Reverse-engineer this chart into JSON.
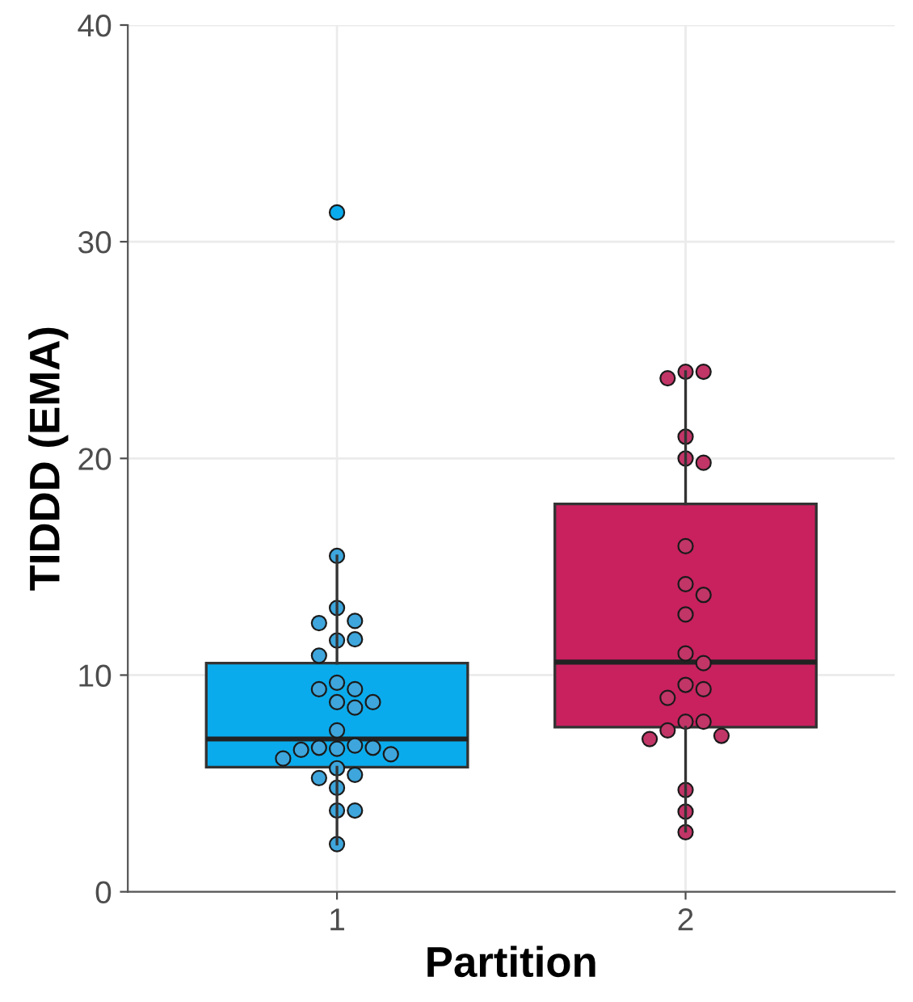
{
  "chart_data": {
    "type": "box",
    "xlabel": "Partition",
    "ylabel": "TIDDD (EMA)",
    "categories": [
      "1",
      "2"
    ],
    "ylim": [
      0,
      40
    ],
    "yticks": [
      0,
      10,
      20,
      30,
      40
    ],
    "grid": true,
    "series": [
      {
        "type": "box",
        "colors": [
          "#0aabec",
          "#c8215e"
        ],
        "boxes": [
          {
            "low": 2.2,
            "q1": 5.75,
            "median": 7.05,
            "q3": 10.55,
            "high": 15.5,
            "outliers": [
              31.35
            ]
          },
          {
            "low": 2.8,
            "q1": 7.6,
            "median": 10.6,
            "q3": 17.9,
            "high": 24.0
          }
        ]
      },
      {
        "type": "scatter",
        "color": "#3ea6dc",
        "marker": "circle",
        "x": [
          "1",
          "1",
          "1",
          "1",
          "1",
          "1",
          "1",
          "1",
          "1",
          "1",
          "1",
          "1",
          "1",
          "1",
          "1",
          "1",
          "1",
          "1",
          "1",
          "1",
          "1",
          "1",
          "1",
          "1",
          "1",
          "1",
          "1",
          "1"
        ],
        "values": [
          15.5,
          13.1,
          12.5,
          12.4,
          11.6,
          11.65,
          10.9,
          9.65,
          9.35,
          9.35,
          8.75,
          8.75,
          8.5,
          7.45,
          6.75,
          6.65,
          6.6,
          6.65,
          6.55,
          6.35,
          6.15,
          5.7,
          5.4,
          5.25,
          4.8,
          3.75,
          3.75,
          2.2
        ]
      },
      {
        "type": "scatter",
        "color": "#c13567",
        "marker": "circle",
        "x": [
          "2",
          "2",
          "2",
          "2",
          "2",
          "2",
          "2",
          "2",
          "2",
          "2",
          "2",
          "2",
          "2",
          "2",
          "2",
          "2",
          "2",
          "2",
          "2",
          "2",
          "2",
          "2",
          "2"
        ],
        "values": [
          24.0,
          24.0,
          23.7,
          21.0,
          20.0,
          19.8,
          15.95,
          14.2,
          13.7,
          12.8,
          11.0,
          10.55,
          9.55,
          9.35,
          8.95,
          7.85,
          7.85,
          7.45,
          7.2,
          7.05,
          4.7,
          3.7,
          2.75
        ]
      }
    ]
  }
}
